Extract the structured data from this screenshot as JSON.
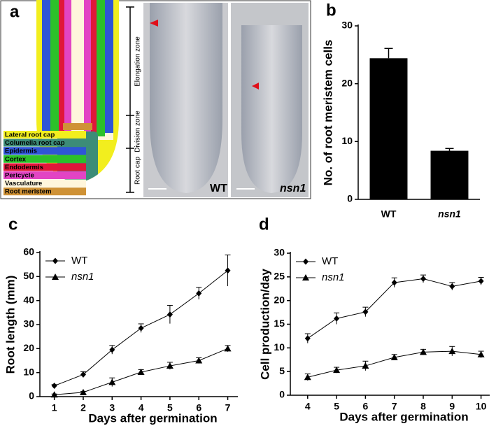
{
  "diagram": {
    "panel": "a",
    "legend": [
      {
        "label": "Lateral root cap",
        "color": "#f2ee1e"
      },
      {
        "label": "Columella root cap",
        "color": "#3c8c78"
      },
      {
        "label": "Epidermis",
        "color": "#2f55d6"
      },
      {
        "label": "Cortex",
        "color": "#2cc02a"
      },
      {
        "label": "Endodermis",
        "color": "#e0163a"
      },
      {
        "label": "Pericycle",
        "color": "#e244c4"
      },
      {
        "label": "Vasculature",
        "color": "#fff6dc"
      },
      {
        "label": "Root meristem",
        "color": "#cf9236"
      }
    ],
    "zones": [
      "Elongation zone",
      "Division zone",
      "Root cap"
    ],
    "images": [
      "WT",
      "nsn1"
    ]
  },
  "chart_data": [
    {
      "type": "bar",
      "panel": "b",
      "ylabel": "No. of root meristem cells",
      "categories": [
        "WT",
        "nsn1"
      ],
      "values": [
        24.4,
        8.4
      ],
      "errors": [
        1.7,
        0.4
      ],
      "color": "#000000",
      "ylim": [
        0,
        30
      ],
      "yticks": [
        0,
        10,
        20,
        30
      ]
    },
    {
      "type": "line",
      "panel": "c",
      "ylabel": "Root length (mm)",
      "xlabel": "Days after germination",
      "x": [
        1,
        2,
        3,
        4,
        5,
        6,
        7
      ],
      "xlim": [
        0.5,
        7.35
      ],
      "xticks": [
        1,
        2,
        3,
        4,
        5,
        6,
        7
      ],
      "ylim": [
        0,
        60
      ],
      "yticks": [
        0,
        10,
        20,
        30,
        40,
        50,
        60
      ],
      "legend": "upper left",
      "series": [
        {
          "name": "WT",
          "color": "#000000",
          "marker": "diamond",
          "values": [
            4.5,
            9.2,
            19.5,
            28.5,
            34.2,
            43,
            52.5
          ],
          "errors": [
            0.5,
            1.2,
            1.8,
            1.8,
            3.8,
            2.5,
            6.5
          ]
        },
        {
          "name": "nsn1",
          "color": "#000000",
          "marker": "triangle",
          "values": [
            0.8,
            1.8,
            6,
            10.2,
            12.8,
            15,
            20
          ],
          "errors": [
            0.3,
            0.4,
            1.8,
            1,
            1.5,
            1.2,
            1.3
          ]
        }
      ]
    },
    {
      "type": "line",
      "panel": "d",
      "ylabel": "Cell production/day",
      "xlabel": "Days after germination",
      "x": [
        4,
        5,
        6,
        7,
        8,
        9,
        10
      ],
      "xlim": [
        3.4,
        10.3
      ],
      "xticks": [
        4,
        5,
        6,
        7,
        8,
        9,
        10
      ],
      "ylim": [
        0,
        30
      ],
      "yticks": [
        0,
        5,
        10,
        15,
        20,
        25,
        30
      ],
      "legend": "upper left",
      "series": [
        {
          "name": "WT",
          "color": "#000000",
          "marker": "diamond",
          "values": [
            12,
            16.2,
            17.6,
            23.8,
            24.6,
            23,
            24.1
          ],
          "errors": [
            1,
            1.2,
            1,
            1,
            0.8,
            0.8,
            0.8
          ]
        },
        {
          "name": "nsn1",
          "color": "#000000",
          "marker": "triangle",
          "values": [
            3.8,
            5.3,
            6.2,
            8,
            9.1,
            9.3,
            8.6
          ],
          "errors": [
            0.7,
            0.6,
            1,
            0.6,
            0.6,
            1,
            0.7
          ]
        }
      ]
    }
  ]
}
